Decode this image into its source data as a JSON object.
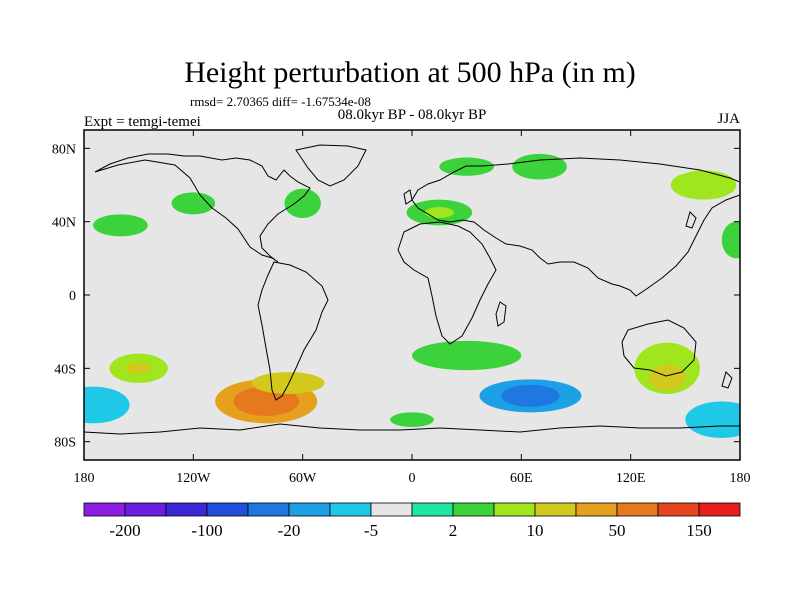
{
  "chart_data": {
    "type": "heatmap",
    "title": "Height perturbation at 500 hPa (in m)",
    "stats": "rmsd= 2.70365 diff= -1.67534e-08",
    "subtitle": "08.0kyr BP - 08.0kyr BP",
    "left_label": "Expt = temgi-temei",
    "right_label": "JJA",
    "xlim": [
      -180,
      180
    ],
    "ylim": [
      -90,
      90
    ],
    "x_ticks": [
      {
        "value": -180,
        "label": "180"
      },
      {
        "value": -120,
        "label": "120W"
      },
      {
        "value": -60,
        "label": "60W"
      },
      {
        "value": 0,
        "label": "0"
      },
      {
        "value": 60,
        "label": "60E"
      },
      {
        "value": 120,
        "label": "120E"
      },
      {
        "value": 180,
        "label": "180"
      }
    ],
    "y_ticks": [
      {
        "value": 80,
        "label": "80N"
      },
      {
        "value": 40,
        "label": "40N"
      },
      {
        "value": 0,
        "label": "0"
      },
      {
        "value": -40,
        "label": "40S"
      },
      {
        "value": -80,
        "label": "80S"
      }
    ],
    "colorbar": {
      "colors": [
        "#8c1ee6",
        "#6a1ee0",
        "#3c28d8",
        "#1e50dc",
        "#1e78e0",
        "#1ea0e6",
        "#1ec8e6",
        "#e6e6e6",
        "#1ee6a0",
        "#3cd23c",
        "#a0e61e",
        "#d2c81e",
        "#e6a01e",
        "#e6781e",
        "#e6461e",
        "#e61e1e"
      ],
      "label_positions": [
        1,
        3,
        5,
        7,
        9,
        11,
        13,
        15
      ],
      "labels": [
        "-200",
        "-100",
        "-20",
        "-5",
        "2",
        "10",
        "50",
        "150"
      ]
    },
    "field": {
      "units": "m",
      "features": [
        {
          "lon": -80,
          "lat": -58,
          "rx": 28,
          "ry": 12,
          "value": 45
        },
        {
          "lon": -80,
          "lat": -58,
          "rx": 18,
          "ry": 8,
          "value": 70
        },
        {
          "lon": -80,
          "lat": -58,
          "rx": 9,
          "ry": 4,
          "value": 95
        },
        {
          "lon": -68,
          "lat": -48,
          "rx": 20,
          "ry": 6,
          "value": 14
        },
        {
          "lon": -150,
          "lat": -40,
          "rx": 16,
          "ry": 8,
          "value": 8
        },
        {
          "lon": -150,
          "lat": -40,
          "rx": 7,
          "ry": 3,
          "value": 18
        },
        {
          "lon": -175,
          "lat": -60,
          "rx": 20,
          "ry": 10,
          "value": -7
        },
        {
          "lon": -100,
          "lat": -75,
          "rx": 30,
          "ry": 6,
          "value": -4
        },
        {
          "lon": -130,
          "lat": -28,
          "rx": 8,
          "ry": 5,
          "value": -3
        },
        {
          "lon": -60,
          "lat": 50,
          "rx": 10,
          "ry": 8,
          "value": 4
        },
        {
          "lon": -120,
          "lat": 50,
          "rx": 12,
          "ry": 6,
          "value": 4
        },
        {
          "lon": -160,
          "lat": 38,
          "rx": 15,
          "ry": 6,
          "value": 3
        },
        {
          "lon": -160,
          "lat": 60,
          "rx": 15,
          "ry": 9,
          "value": -4
        },
        {
          "lon": -95,
          "lat": 65,
          "rx": 12,
          "ry": 10,
          "value": -4
        },
        {
          "lon": 15,
          "lat": 45,
          "rx": 18,
          "ry": 7,
          "value": 4
        },
        {
          "lon": 15,
          "lat": 45,
          "rx": 8,
          "ry": 3,
          "value": 9
        },
        {
          "lon": 30,
          "lat": 70,
          "rx": 15,
          "ry": 5,
          "value": 3
        },
        {
          "lon": 30,
          "lat": 25,
          "rx": 6,
          "ry": 3,
          "value": -3
        },
        {
          "lon": 60,
          "lat": 55,
          "rx": 20,
          "ry": 9,
          "value": -5
        },
        {
          "lon": 70,
          "lat": 70,
          "rx": 15,
          "ry": 7,
          "value": 3
        },
        {
          "lon": 150,
          "lat": 45,
          "rx": 25,
          "ry": 9,
          "value": -5
        },
        {
          "lon": 160,
          "lat": 60,
          "rx": 18,
          "ry": 8,
          "value": 5
        },
        {
          "lon": 140,
          "lat": 70,
          "rx": 15,
          "ry": 5,
          "value": -3
        },
        {
          "lon": 178,
          "lat": 30,
          "rx": 8,
          "ry": 10,
          "value": 3
        },
        {
          "lon": 30,
          "lat": -33,
          "rx": 30,
          "ry": 8,
          "value": 3
        },
        {
          "lon": 65,
          "lat": -55,
          "rx": 40,
          "ry": 14,
          "value": -5
        },
        {
          "lon": 65,
          "lat": -55,
          "rx": 28,
          "ry": 9,
          "value": -12
        },
        {
          "lon": 65,
          "lat": -55,
          "rx": 16,
          "ry": 6,
          "value": -25
        },
        {
          "lon": 140,
          "lat": -40,
          "rx": 18,
          "ry": 14,
          "value": 5
        },
        {
          "lon": 140,
          "lat": -45,
          "rx": 10,
          "ry": 7,
          "value": 12
        },
        {
          "lon": 170,
          "lat": -68,
          "rx": 20,
          "ry": 10,
          "value": -6
        },
        {
          "lon": 0,
          "lat": -68,
          "rx": 12,
          "ry": 4,
          "value": 3
        },
        {
          "lon": -135,
          "lat": -80,
          "rx": 25,
          "ry": 5,
          "value": -4
        },
        {
          "lon": 175,
          "lat": -30,
          "rx": 8,
          "ry": 8,
          "value": -3
        }
      ]
    }
  }
}
